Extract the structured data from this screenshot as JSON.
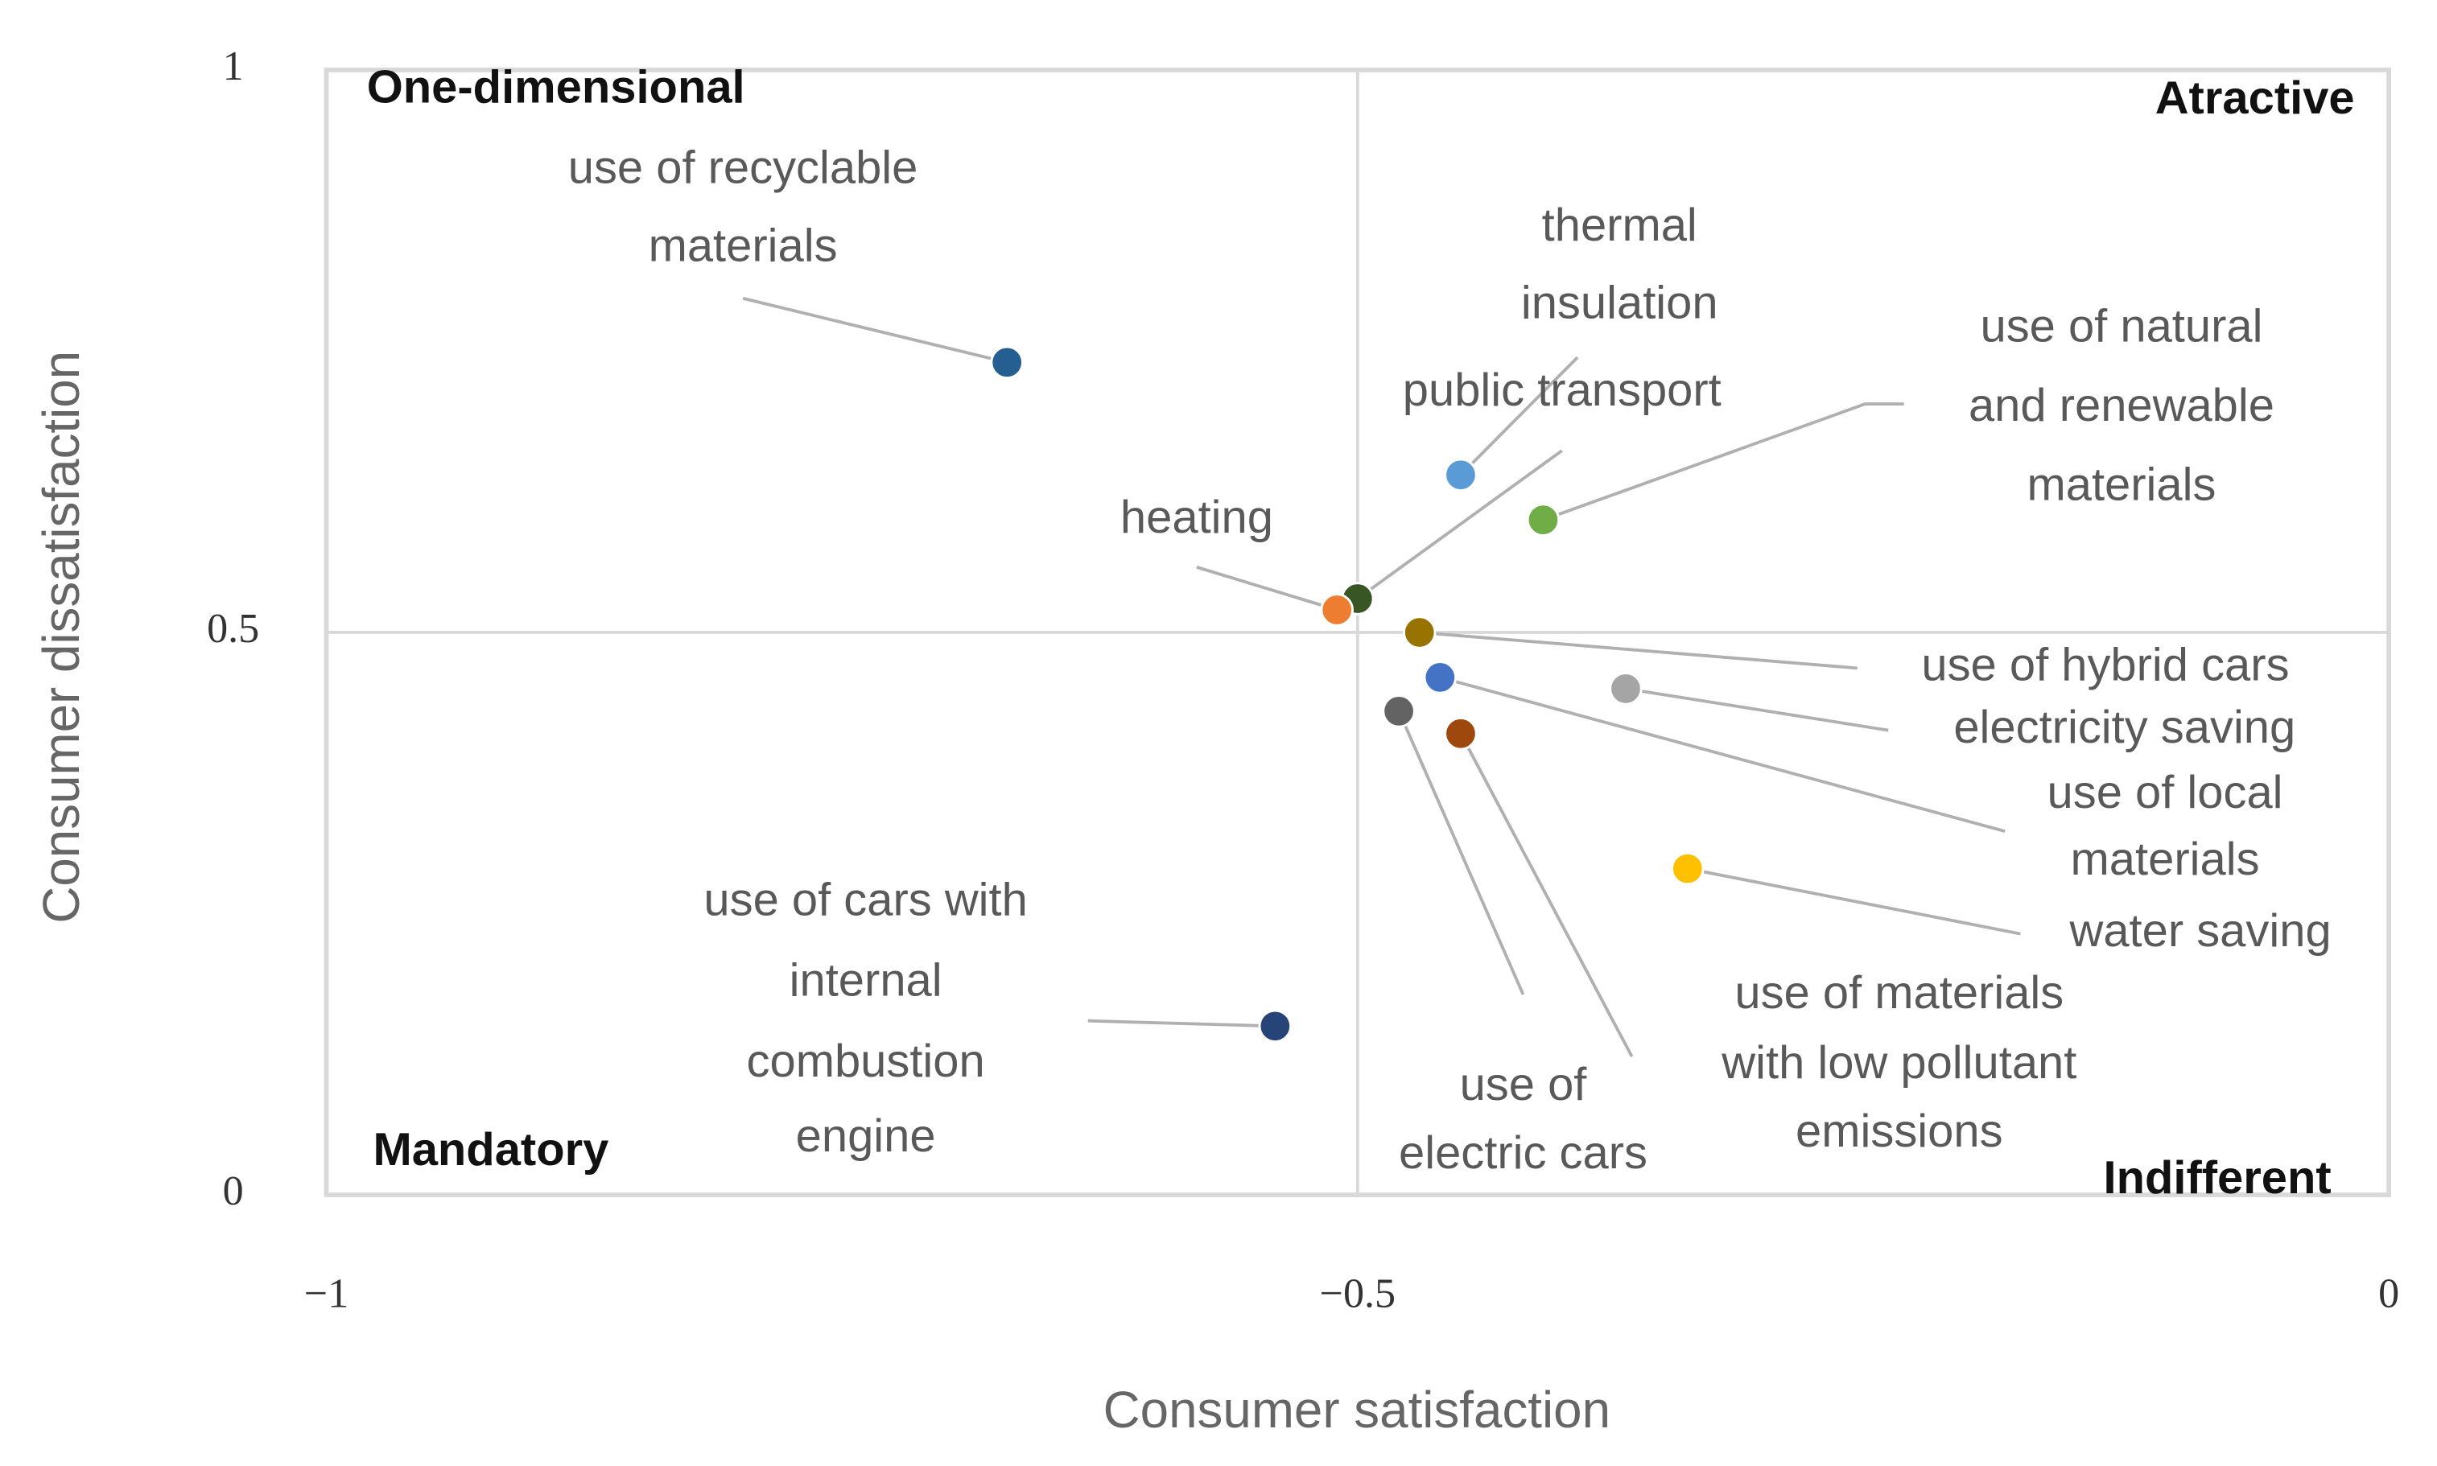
{
  "chart_data": {
    "type": "scatter",
    "x_label": "Consumer satisfaction",
    "y_label": "Consumer dissatisfaction",
    "xlim": [
      -1,
      0
    ],
    "ylim": [
      0,
      1
    ],
    "xticks": [
      {
        "value": -1,
        "label": "−1"
      },
      {
        "value": -0.5,
        "label": "−0.5"
      },
      0
    ],
    "yticks": [
      0,
      0.5,
      1
    ],
    "grid": true,
    "annotations": [
      "One-dimensional",
      "Atractive",
      "Mandatory",
      "Indifferent"
    ],
    "points": [
      {
        "label": [
          "use of recyclable",
          "materials"
        ],
        "x": -0.67,
        "y": 0.74,
        "color": "#255e91"
      },
      {
        "label": [
          "thermal",
          "insulation"
        ],
        "x": -0.45,
        "y": 0.64,
        "color": "#5b9bd5"
      },
      {
        "label": [
          "public transport"
        ],
        "x": -0.5,
        "y": 0.53,
        "color": "#375623"
      },
      {
        "label": [
          "use of natural",
          "and renewable",
          "materials"
        ],
        "x": -0.41,
        "y": 0.6,
        "color": "#70ad47"
      },
      {
        "label": [
          "heating"
        ],
        "x": -0.51,
        "y": 0.52,
        "color": "#ed7d31"
      },
      {
        "label": [
          "use of hybrid cars"
        ],
        "x": -0.47,
        "y": 0.5,
        "color": "#997300"
      },
      {
        "label": [
          "electricity saving"
        ],
        "x": -0.37,
        "y": 0.45,
        "color": "#a5a5a5"
      },
      {
        "label": [
          "use of local",
          "materials"
        ],
        "x": -0.46,
        "y": 0.46,
        "color": "#4472c4"
      },
      {
        "label": [
          "water saving"
        ],
        "x": -0.34,
        "y": 0.29,
        "color": "#ffc000"
      },
      {
        "label": [
          "use of materials",
          "with low pollutant",
          "emissions"
        ],
        "x": -0.45,
        "y": 0.41,
        "color": "#9e480e"
      },
      {
        "label": [
          "use of",
          "electric cars"
        ],
        "x": -0.48,
        "y": 0.43,
        "color": "#636363"
      },
      {
        "label": [
          "use of cars with",
          "internal",
          "combustion",
          "engine"
        ],
        "x": -0.54,
        "y": 0.15,
        "color": "#264478"
      }
    ]
  }
}
